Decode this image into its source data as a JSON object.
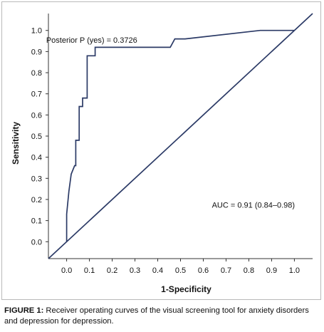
{
  "chart_data": {
    "type": "line",
    "xlabel": "1-Specificity",
    "ylabel": "Sensitivity",
    "xlim": [
      -0.08,
      1.08
    ],
    "ylim": [
      -0.08,
      1.08
    ],
    "x_ticks": [
      "0.0",
      "0.1",
      "0.2",
      "0.3",
      "0.4",
      "0.5",
      "0.6",
      "0.7",
      "0.8",
      "0.9",
      "1.0"
    ],
    "y_ticks": [
      "0.0",
      "0.1",
      "0.2",
      "0.3",
      "0.4",
      "0.5",
      "0.6",
      "0.7",
      "0.8",
      "0.9",
      "1.0"
    ],
    "grid": false,
    "line_color": "#2b3a66",
    "series": [
      {
        "values": [
          {
            "x": 0.0,
            "y": 0.0
          },
          {
            "x": 0.0,
            "y": 0.13
          },
          {
            "x": 0.01,
            "y": 0.24
          },
          {
            "x": 0.02,
            "y": 0.32
          },
          {
            "x": 0.035,
            "y": 0.36
          },
          {
            "x": 0.04,
            "y": 0.36
          },
          {
            "x": 0.04,
            "y": 0.48
          },
          {
            "x": 0.055,
            "y": 0.48
          },
          {
            "x": 0.055,
            "y": 0.64
          },
          {
            "x": 0.07,
            "y": 0.64
          },
          {
            "x": 0.07,
            "y": 0.68
          },
          {
            "x": 0.09,
            "y": 0.68
          },
          {
            "x": 0.09,
            "y": 0.88
          },
          {
            "x": 0.125,
            "y": 0.88
          },
          {
            "x": 0.125,
            "y": 0.92
          },
          {
            "x": 0.455,
            "y": 0.92
          },
          {
            "x": 0.475,
            "y": 0.96
          },
          {
            "x": 0.52,
            "y": 0.96
          },
          {
            "x": 0.85,
            "y": 1.0
          },
          {
            "x": 1.0,
            "y": 1.0
          }
        ]
      },
      {
        "values": [
          {
            "x": -0.08,
            "y": -0.08
          },
          {
            "x": 1.08,
            "y": 1.08
          }
        ]
      }
    ],
    "annotations": [
      {
        "text": "Posterior P (yes) = 0.3726",
        "x": 0.11,
        "y": 0.955
      },
      {
        "text": "AUC = 0.91 (0.84–0.98)",
        "x": 0.82,
        "y": 0.175
      }
    ]
  },
  "caption": {
    "label": "FIGURE 1:",
    "text": " Receiver operating curves of the visual screening tool for anxiety disorders and depression for depression."
  }
}
